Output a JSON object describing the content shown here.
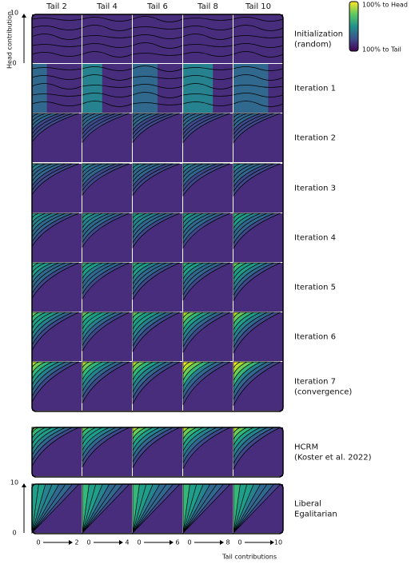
{
  "columns": [
    "Tail 2",
    "Tail 4",
    "Tail 6",
    "Tail 8",
    "Tail 10"
  ],
  "rows": [
    [
      "Initialization",
      "(random)"
    ],
    [
      "Iteration 1"
    ],
    [
      "Iteration 2"
    ],
    [
      "Iteration 3"
    ],
    [
      "Iteration 4"
    ],
    [
      "Iteration 5"
    ],
    [
      "Iteration 6"
    ],
    [
      "Iteration 7",
      "(convergence)"
    ],
    [
      "HCRM",
      "(Koster et al. 2022)"
    ],
    [
      "Liberal",
      "Egalitarian"
    ]
  ],
  "legend": {
    "top": "100% to Head",
    "bottom": "100% to Tail"
  },
  "y_axis": {
    "label": "Head contribution",
    "ticks_top": [
      10,
      0
    ],
    "ticks_bottom": [
      10,
      0
    ]
  },
  "x_axis": {
    "label": "Tail contributions",
    "ticks": [
      [
        0,
        2
      ],
      [
        0,
        4
      ],
      [
        0,
        6
      ],
      [
        0,
        8
      ],
      [
        0,
        10
      ]
    ]
  }
}
